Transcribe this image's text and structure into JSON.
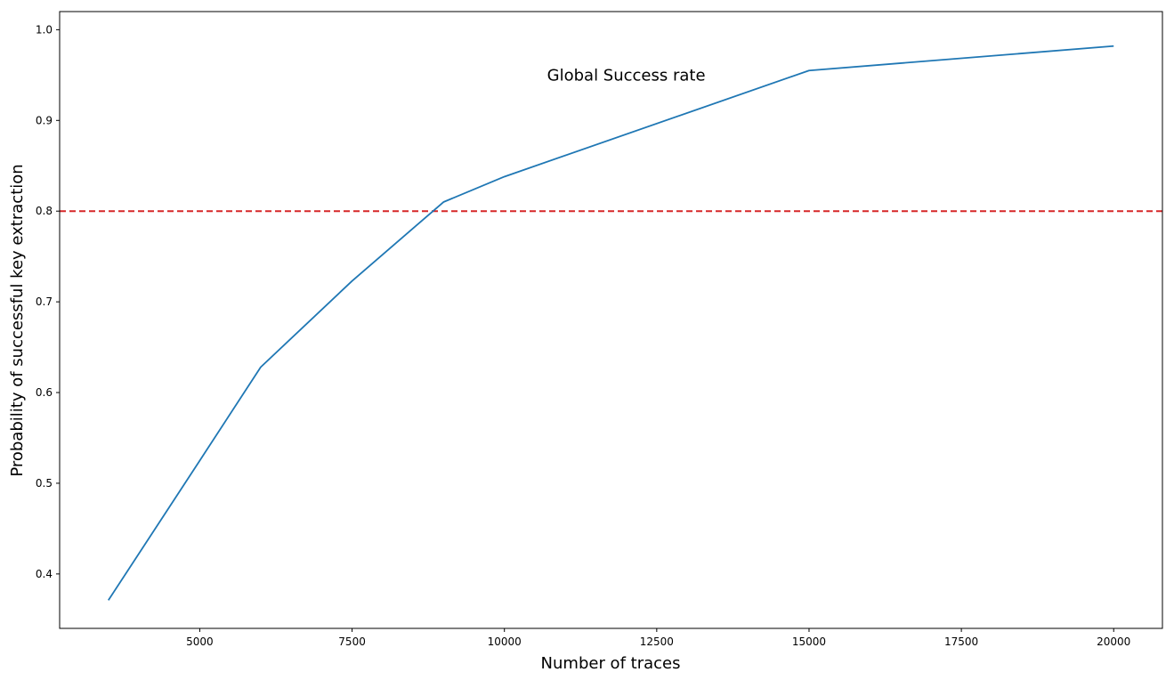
{
  "chart_data": {
    "type": "line",
    "title": "",
    "xlabel": "Number of traces",
    "ylabel": "Probability of successful key extraction",
    "xlim": [
      2700,
      20800
    ],
    "ylim": [
      0.34,
      1.02
    ],
    "xticks": [
      5000,
      7500,
      10000,
      12500,
      15000,
      17500,
      20000
    ],
    "yticks": [
      0.4,
      0.5,
      0.6,
      0.7,
      0.8,
      0.9,
      1.0
    ],
    "grid": false,
    "annotation": {
      "text": "Global Success rate",
      "x": 12000,
      "y": 0.95
    },
    "series": [
      {
        "color": "#1f77b4",
        "x": [
          3500,
          5000,
          6000,
          7500,
          9000,
          10000,
          15000,
          20000
        ],
        "y": [
          0.371,
          0.525,
          0.628,
          0.723,
          0.81,
          0.838,
          0.955,
          0.982
        ]
      }
    ],
    "threshold": {
      "y": 0.8,
      "color": "#d62728",
      "style": "dashed"
    }
  }
}
